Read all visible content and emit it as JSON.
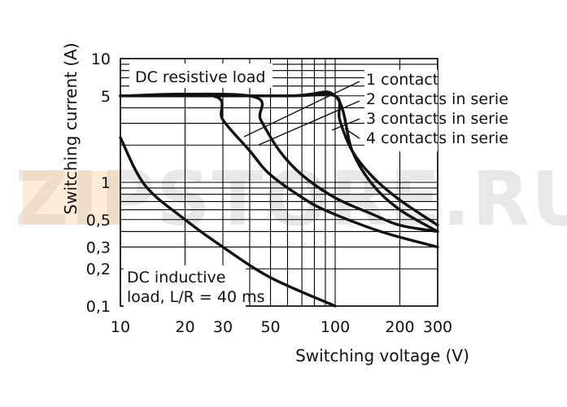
{
  "chart_data": {
    "type": "line",
    "title": "",
    "xlabel": "Switching voltage (V)",
    "ylabel": "Switching current (A)",
    "xscale": "log",
    "yscale": "log",
    "xlim": [
      10,
      300
    ],
    "ylim": [
      0.1,
      10
    ],
    "grid": true,
    "x_ticks": [
      {
        "value": 10,
        "label": "10"
      },
      {
        "value": 20,
        "label": "20"
      },
      {
        "value": 30,
        "label": "30"
      },
      {
        "value": 50,
        "label": "50"
      },
      {
        "value": 100,
        "label": "100"
      },
      {
        "value": 200,
        "label": "200"
      },
      {
        "value": 300,
        "label": "300"
      }
    ],
    "y_ticks": [
      {
        "value": 10,
        "label": "10"
      },
      {
        "value": 5,
        "label": "5"
      },
      {
        "value": 1,
        "label": "1"
      },
      {
        "value": 0.5,
        "label": "0,5"
      },
      {
        "value": 0.3,
        "label": "0,3"
      },
      {
        "value": 0.2,
        "label": "0,2"
      },
      {
        "value": 0.1,
        "label": "0,1"
      }
    ],
    "series": [
      {
        "name": "1 contact",
        "points": [
          [
            10,
            5
          ],
          [
            60,
            5
          ],
          [
            100,
            5
          ],
          [
            120,
            1.8
          ],
          [
            150,
            0.95
          ],
          [
            200,
            0.6
          ],
          [
            300,
            0.4
          ]
        ]
      },
      {
        "name": "2 contacts in serie",
        "points": [
          [
            10,
            5
          ],
          [
            60,
            5
          ],
          [
            100,
            5
          ],
          [
            105,
            3.2
          ],
          [
            120,
            1.8
          ],
          [
            150,
            1.1
          ],
          [
            200,
            0.72
          ],
          [
            300,
            0.45
          ]
        ]
      },
      {
        "name": "3 contacts in serie",
        "points": [
          [
            10,
            5
          ],
          [
            40,
            5
          ],
          [
            45,
            3.2
          ],
          [
            55,
            1.8
          ],
          [
            70,
            1.15
          ],
          [
            100,
            0.75
          ],
          [
            150,
            0.55
          ],
          [
            200,
            0.45
          ],
          [
            300,
            0.4
          ]
        ]
      },
      {
        "name": "4 contacts in serie",
        "points": [
          [
            10,
            5
          ],
          [
            27,
            5
          ],
          [
            30,
            3.2
          ],
          [
            40,
            1.8
          ],
          [
            50,
            1.15
          ],
          [
            75,
            0.7
          ],
          [
            100,
            0.55
          ],
          [
            150,
            0.42
          ],
          [
            200,
            0.36
          ],
          [
            300,
            0.3
          ]
        ]
      },
      {
        "name": "DC inductive load, L/R = 40 ms",
        "points": [
          [
            10,
            2.3
          ],
          [
            13,
            0.95
          ],
          [
            20,
            0.5
          ],
          [
            30,
            0.3
          ],
          [
            50,
            0.17
          ],
          [
            100,
            0.1
          ]
        ]
      }
    ],
    "annotations": [
      {
        "text": "DC resistive load"
      },
      {
        "text": "1 contact"
      },
      {
        "text": "2 contacts in serie"
      },
      {
        "text": "3 contacts in serie"
      },
      {
        "text": "4 contacts in serie"
      },
      {
        "text": "DC inductive"
      },
      {
        "text": "load, L/R = 40 ms"
      }
    ],
    "watermark": "ZIPSTORE.RU"
  }
}
